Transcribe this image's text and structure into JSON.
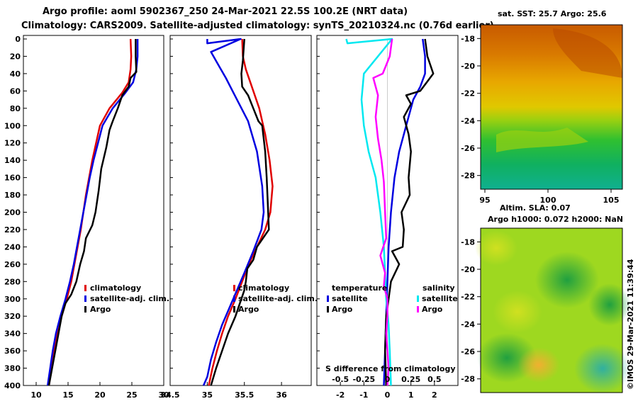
{
  "header": {
    "title_line1": "Argo profile: aoml 5902367_250 24-Mar-2021 22.5S 100.2E (NRT data)",
    "title_line2": "Climatology: CARS2009. Satellite-adjusted climatology: synTS_20210324.nc (0.76d earlier)"
  },
  "sst_map": {
    "title": "sat. SST: 25.7 Argo: 25.6",
    "lat_ticks": [
      "-18",
      "-20",
      "-22",
      "-24",
      "-26",
      "-28"
    ],
    "lon_ticks": [
      "95",
      "100",
      "105"
    ]
  },
  "sla_map": {
    "title_line1": "Altim. SLA: 0.07",
    "title_line2": "Argo h1000: 0.072 h2000: NaN",
    "lat_ticks": [
      "-18",
      "-20",
      "-22",
      "-24",
      "-26",
      "-28"
    ]
  },
  "credit": "©IMOS 29-Mar-2021 11:39:44",
  "colors": {
    "climatology": "#e00000",
    "satellite": "#0000e0",
    "argo": "#000000",
    "sat_salinity": "#00e8f0",
    "argo_salinity": "#ff00ff"
  },
  "chart_data": [
    {
      "type": "line",
      "name": "temperature-profile",
      "ylabel": "depth",
      "ylim": [
        400,
        0
      ],
      "xlim": [
        8,
        30
      ],
      "yticks": [
        0,
        20,
        40,
        60,
        80,
        100,
        120,
        140,
        160,
        180,
        200,
        220,
        240,
        260,
        280,
        300,
        320,
        340,
        360,
        380,
        400
      ],
      "xticks": [
        10,
        15,
        20,
        25,
        30
      ],
      "legend": [
        "climatology",
        "satellite-adj. clim.",
        "Argo"
      ],
      "series": [
        {
          "name": "climatology",
          "color_key": "climatology",
          "points": [
            [
              24.8,
              0
            ],
            [
              24.9,
              20
            ],
            [
              24.8,
              35
            ],
            [
              24.5,
              50
            ],
            [
              23.5,
              62
            ],
            [
              21.5,
              80
            ],
            [
              20,
              100
            ],
            [
              19.4,
              120
            ],
            [
              18.8,
              140
            ],
            [
              18.3,
              160
            ],
            [
              17.8,
              180
            ],
            [
              17.4,
              200
            ],
            [
              17,
              220
            ],
            [
              16.5,
              240
            ],
            [
              16,
              260
            ],
            [
              15.5,
              280
            ],
            [
              14.8,
              300
            ],
            [
              14,
              320
            ],
            [
              13.3,
              340
            ],
            [
              12.8,
              360
            ],
            [
              12.4,
              380
            ],
            [
              12,
              400
            ]
          ]
        },
        {
          "name": "satellite-adj. clim.",
          "color_key": "satellite",
          "points": [
            [
              25.9,
              0
            ],
            [
              25.9,
              20
            ],
            [
              25.7,
              35
            ],
            [
              25.2,
              50
            ],
            [
              24,
              62
            ],
            [
              22,
              80
            ],
            [
              20.4,
              100
            ],
            [
              19.7,
              120
            ],
            [
              19,
              140
            ],
            [
              18.4,
              160
            ],
            [
              17.9,
              180
            ],
            [
              17.4,
              200
            ],
            [
              16.9,
              220
            ],
            [
              16.4,
              240
            ],
            [
              15.9,
              260
            ],
            [
              15.3,
              280
            ],
            [
              14.6,
              300
            ],
            [
              13.8,
              320
            ],
            [
              13.1,
              340
            ],
            [
              12.6,
              360
            ],
            [
              12.2,
              380
            ],
            [
              11.8,
              400
            ]
          ]
        },
        {
          "name": "Argo",
          "color_key": "argo",
          "points": [
            [
              25.6,
              0
            ],
            [
              25.6,
              20
            ],
            [
              25.7,
              38
            ],
            [
              24.8,
              45
            ],
            [
              24.5,
              55
            ],
            [
              23.5,
              65
            ],
            [
              22.8,
              80
            ],
            [
              22,
              95
            ],
            [
              21.5,
              105
            ],
            [
              21,
              125
            ],
            [
              20.2,
              150
            ],
            [
              19.8,
              175
            ],
            [
              19.3,
              200
            ],
            [
              18.8,
              215
            ],
            [
              17.8,
              230
            ],
            [
              17.5,
              245
            ],
            [
              16.9,
              260
            ],
            [
              16.3,
              280
            ],
            [
              15.5,
              295
            ],
            [
              14.6,
              305
            ],
            [
              14,
              320
            ],
            [
              13.5,
              340
            ],
            [
              13,
              360
            ],
            [
              12.5,
              380
            ],
            [
              12,
              400
            ]
          ]
        }
      ]
    },
    {
      "type": "line",
      "name": "salinity-profile",
      "ylim": [
        400,
        0
      ],
      "xlim": [
        34.5,
        36.4
      ],
      "xticks": [
        34.5,
        35,
        35.5,
        36
      ],
      "legend": [
        "climatology",
        "satellite-adj. clim.",
        "Argo"
      ],
      "series": [
        {
          "name": "climatology",
          "color_key": "climatology",
          "points": [
            [
              35.47,
              0
            ],
            [
              35.48,
              20
            ],
            [
              35.52,
              35
            ],
            [
              35.6,
              55
            ],
            [
              35.7,
              80
            ],
            [
              35.78,
              110
            ],
            [
              35.84,
              140
            ],
            [
              35.88,
              170
            ],
            [
              35.85,
              200
            ],
            [
              35.78,
              220
            ],
            [
              35.67,
              240
            ],
            [
              35.56,
              260
            ],
            [
              35.47,
              280
            ],
            [
              35.38,
              300
            ],
            [
              35.28,
              320
            ],
            [
              35.2,
              340
            ],
            [
              35.13,
              360
            ],
            [
              35.07,
              380
            ],
            [
              35.02,
              400
            ]
          ]
        },
        {
          "name": "satellite-adj. clim.",
          "color_key": "satellite",
          "points": [
            [
              35.0,
              0
            ],
            [
              35.0,
              5
            ],
            [
              35.45,
              0
            ],
            [
              35.05,
              15
            ],
            [
              35.15,
              30
            ],
            [
              35.25,
              45
            ],
            [
              35.4,
              70
            ],
            [
              35.55,
              95
            ],
            [
              35.67,
              130
            ],
            [
              35.74,
              170
            ],
            [
              35.76,
              200
            ],
            [
              35.73,
              220
            ],
            [
              35.62,
              245
            ],
            [
              35.5,
              270
            ],
            [
              35.4,
              290
            ],
            [
              35.3,
              310
            ],
            [
              35.2,
              330
            ],
            [
              35.12,
              350
            ],
            [
              35.05,
              370
            ],
            [
              35.0,
              390
            ],
            [
              34.95,
              400
            ]
          ]
        },
        {
          "name": "Argo",
          "color_key": "argo",
          "points": [
            [
              35.5,
              0
            ],
            [
              35.48,
              25
            ],
            [
              35.46,
              40
            ],
            [
              35.47,
              55
            ],
            [
              35.55,
              65
            ],
            [
              35.62,
              80
            ],
            [
              35.69,
              95
            ],
            [
              35.74,
              100
            ],
            [
              35.78,
              130
            ],
            [
              35.8,
              160
            ],
            [
              35.82,
              200
            ],
            [
              35.83,
              220
            ],
            [
              35.67,
              240
            ],
            [
              35.62,
              255
            ],
            [
              35.54,
              265
            ],
            [
              35.52,
              280
            ],
            [
              35.5,
              290
            ],
            [
              35.46,
              300
            ],
            [
              35.38,
              320
            ],
            [
              35.28,
              340
            ],
            [
              35.2,
              360
            ],
            [
              35.12,
              380
            ],
            [
              35.05,
              400
            ]
          ]
        }
      ]
    },
    {
      "type": "line",
      "name": "difference-from-climatology",
      "ylim": [
        400,
        0
      ],
      "xlim": [
        -3,
        3
      ],
      "xticks": [
        "-2",
        "-1",
        "0",
        "1",
        "2"
      ],
      "sub_ticks": [
        "-0.5",
        "-0.25",
        "0",
        "0.25",
        "0.5"
      ],
      "sub_label": "S difference from climatology",
      "legend_left_title": "temperature",
      "legend_right_title": "salinity",
      "legend_left": [
        "satellite",
        "Argo"
      ],
      "legend_right": [
        "satellite",
        "Argo"
      ],
      "series": [
        {
          "name": "temperature satellite",
          "color_key": "satellite",
          "points": [
            [
              1.5,
              0
            ],
            [
              1.6,
              20
            ],
            [
              1.6,
              40
            ],
            [
              1.4,
              55
            ],
            [
              1.1,
              70
            ],
            [
              0.8,
              100
            ],
            [
              0.5,
              130
            ],
            [
              0.3,
              160
            ],
            [
              0.15,
              200
            ],
            [
              0.05,
              240
            ],
            [
              0,
              280
            ],
            [
              -0.05,
              320
            ],
            [
              -0.1,
              360
            ],
            [
              -0.15,
              400
            ]
          ]
        },
        {
          "name": "temperature Argo",
          "color_key": "argo",
          "points": [
            [
              1.6,
              0
            ],
            [
              1.7,
              20
            ],
            [
              1.95,
              40
            ],
            [
              1.4,
              60
            ],
            [
              0.8,
              65
            ],
            [
              1.0,
              75
            ],
            [
              0.7,
              90
            ],
            [
              0.9,
              110
            ],
            [
              1.0,
              130
            ],
            [
              0.9,
              160
            ],
            [
              0.95,
              180
            ],
            [
              0.6,
              200
            ],
            [
              0.7,
              220
            ],
            [
              0.65,
              240
            ],
            [
              0.2,
              245
            ],
            [
              0.5,
              260
            ],
            [
              0.15,
              280
            ],
            [
              0.05,
              300
            ],
            [
              -0.05,
              320
            ],
            [
              -0.1,
              360
            ],
            [
              -0.05,
              400
            ]
          ]
        },
        {
          "name": "salinity satellite",
          "color_key": "sat_salinity",
          "points": [
            [
              -1.75,
              0
            ],
            [
              -1.7,
              5
            ],
            [
              0.2,
              0
            ],
            [
              -1.0,
              40
            ],
            [
              -1.1,
              70
            ],
            [
              -1.0,
              100
            ],
            [
              -0.8,
              130
            ],
            [
              -0.5,
              160
            ],
            [
              -0.3,
              200
            ],
            [
              -0.15,
              240
            ],
            [
              -0.1,
              270
            ],
            [
              -0.05,
              300
            ],
            [
              0.05,
              330
            ],
            [
              0.1,
              360
            ],
            [
              0.15,
              400
            ]
          ]
        },
        {
          "name": "salinity Argo",
          "color_key": "argo_salinity",
          "points": [
            [
              0.2,
              0
            ],
            [
              0.1,
              20
            ],
            [
              -0.2,
              40
            ],
            [
              -0.6,
              45
            ],
            [
              -0.4,
              65
            ],
            [
              -0.5,
              90
            ],
            [
              -0.4,
              115
            ],
            [
              -0.25,
              140
            ],
            [
              -0.15,
              165
            ],
            [
              -0.1,
              200
            ],
            [
              -0.05,
              230
            ],
            [
              -0.3,
              250
            ],
            [
              -0.1,
              270
            ],
            [
              -0.15,
              285
            ],
            [
              0,
              300
            ],
            [
              0,
              320
            ],
            [
              -0.05,
              340
            ],
            [
              0,
              360
            ],
            [
              0.05,
              380
            ],
            [
              0,
              400
            ]
          ]
        }
      ]
    }
  ]
}
